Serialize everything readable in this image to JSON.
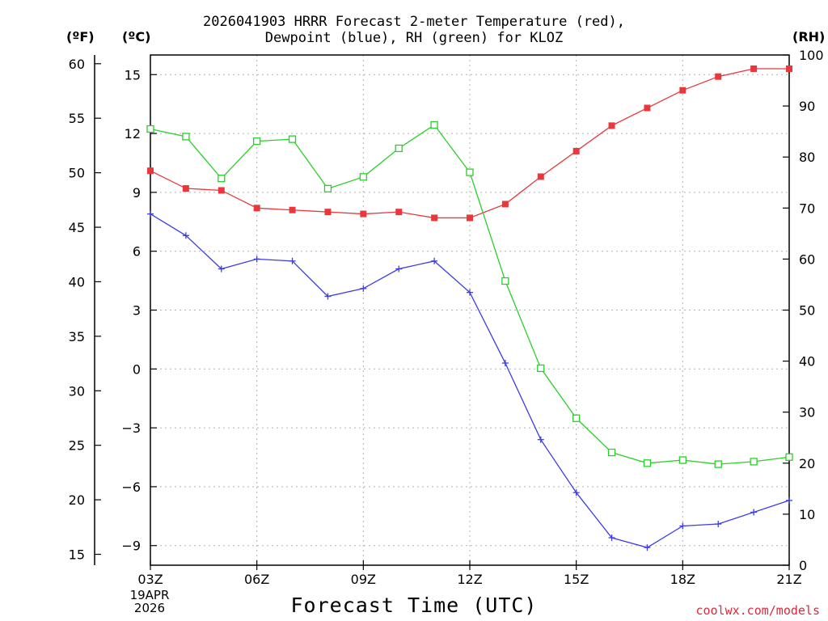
{
  "title": {
    "line1": "2026041903 HRRR Forecast 2-meter Temperature (red),",
    "line2": "Dewpoint (blue), RH (green) for KLOZ"
  },
  "units": {
    "fahrenheit": "(ºF)",
    "celsius": "(ºC)",
    "rh": "(RH)"
  },
  "xlabel": "Forecast Time (UTC)",
  "date_label": {
    "day": "19APR",
    "year": "2026"
  },
  "credit": "coolwx.com/models",
  "colors": {
    "temperature": "#e8383c",
    "dewpoint": "#3c3ce8",
    "rh": "#28d028",
    "grid": "#b4b4b4",
    "credit": "#e0283c"
  },
  "chart_data": {
    "type": "line",
    "title": "2026041903 HRRR Forecast 2-meter Temperature (red), Dewpoint (blue), RH (green) for KLOZ",
    "xlabel": "Forecast Time (UTC)",
    "x": [
      0,
      1,
      2,
      3,
      4,
      5,
      6,
      7,
      8,
      9,
      10,
      11,
      12,
      13,
      14,
      15,
      16,
      17,
      18
    ],
    "x_ticks": [
      0,
      3,
      6,
      9,
      12,
      15,
      18
    ],
    "x_tick_labels": [
      "03Z",
      "06Z",
      "09Z",
      "12Z",
      "15Z",
      "18Z",
      "21Z"
    ],
    "y_left_celsius": {
      "range": [
        -10,
        16
      ],
      "ticks": [
        15,
        12,
        9,
        6,
        3,
        0,
        -3,
        -6,
        -9
      ],
      "tick_labels": [
        "15",
        "12",
        "9",
        "6",
        "3",
        "0",
        "−3",
        "−6",
        "−9"
      ]
    },
    "y_left_fahrenheit": {
      "range": [
        14,
        60.8
      ],
      "ticks": [
        60,
        55,
        50,
        45,
        40,
        35,
        30,
        25,
        20,
        15
      ]
    },
    "y_right_rh": {
      "range": [
        0,
        100
      ],
      "ticks": [
        100,
        90,
        80,
        70,
        60,
        50,
        40,
        30,
        20,
        10,
        0
      ]
    },
    "series": [
      {
        "name": "Temperature (°C)",
        "axis": "celsius",
        "marker": "filled-square",
        "color": "#e8383c",
        "values": [
          10.1,
          9.2,
          9.1,
          8.2,
          8.1,
          8.0,
          7.9,
          8.0,
          7.7,
          7.7,
          8.4,
          9.8,
          11.1,
          12.4,
          13.3,
          14.2,
          14.9,
          15.3,
          15.3
        ]
      },
      {
        "name": "Dewpoint (°C)",
        "axis": "celsius",
        "marker": "plus",
        "color": "#3c3ce8",
        "values": [
          7.9,
          6.8,
          5.1,
          5.6,
          5.5,
          3.7,
          4.1,
          5.1,
          5.5,
          3.9,
          0.3,
          -3.6,
          -6.3,
          -8.6,
          -9.1,
          -8.0,
          -7.9,
          -7.3,
          -6.7
        ]
      },
      {
        "name": "RH (%)",
        "axis": "rh",
        "marker": "open-square",
        "color": "#28d028",
        "values": [
          85.5,
          84.0,
          75.8,
          83.1,
          83.5,
          73.8,
          76.1,
          81.7,
          86.3,
          77.0,
          55.7,
          38.6,
          28.8,
          22.1,
          20.0,
          20.6,
          19.8,
          20.3,
          21.2
        ]
      }
    ]
  }
}
